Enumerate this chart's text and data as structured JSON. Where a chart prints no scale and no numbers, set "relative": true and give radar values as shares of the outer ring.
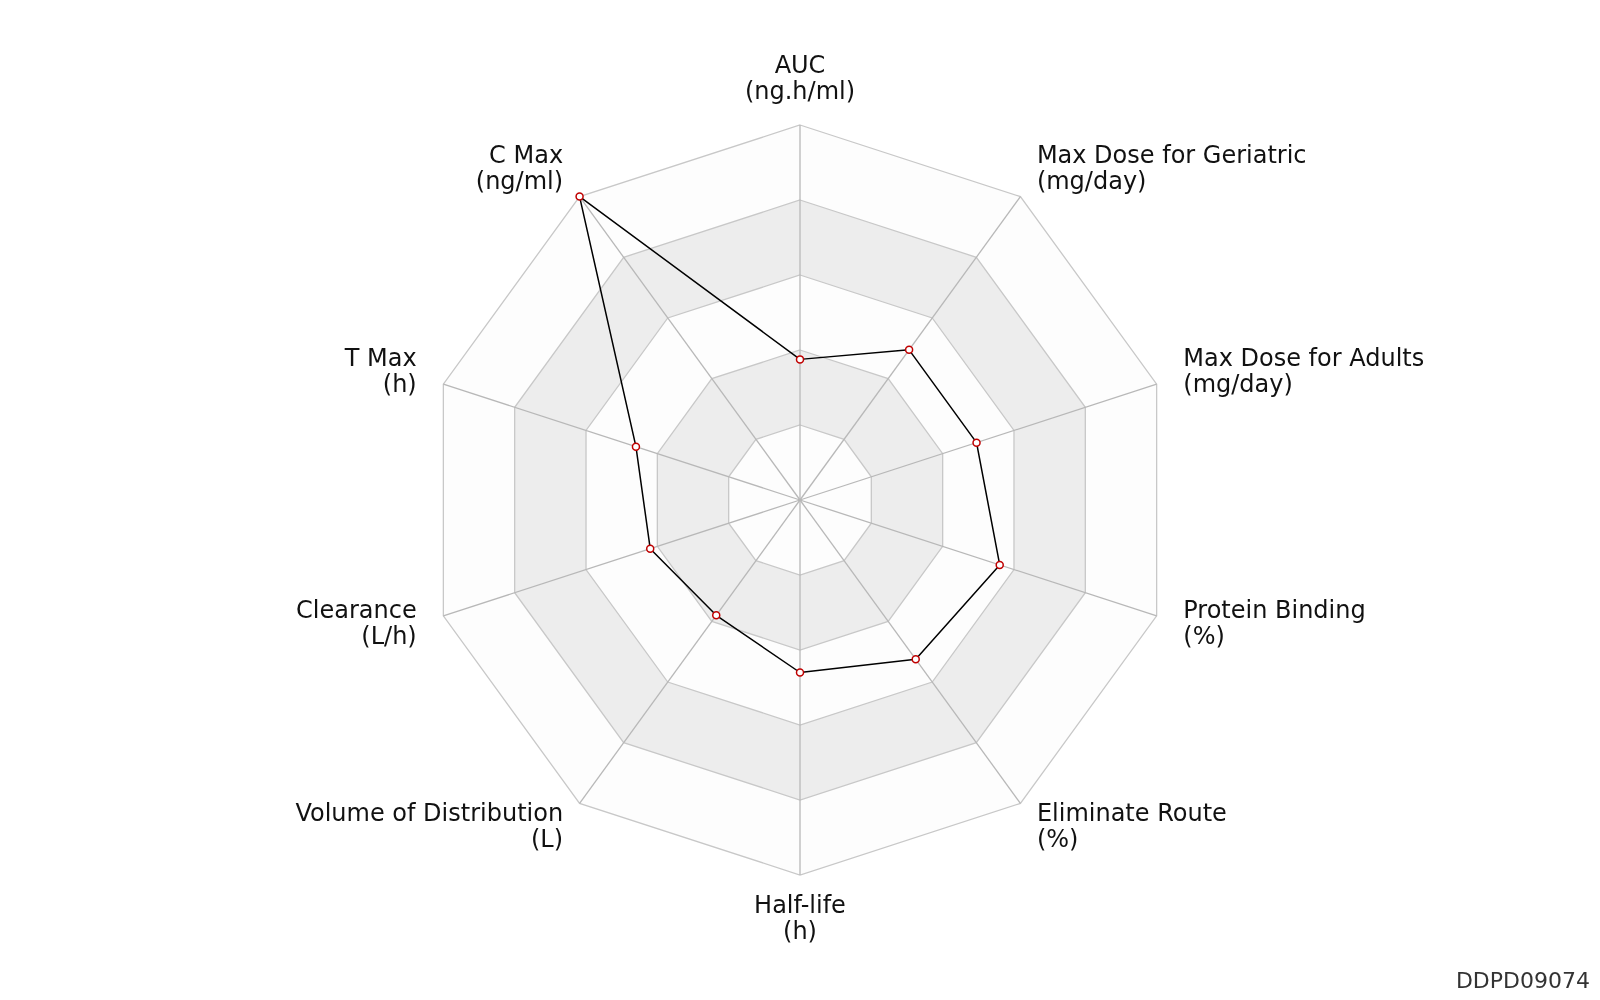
{
  "chart_data": {
    "type": "radar",
    "relative": true,
    "categories": [
      "AUC\n(ng.h/ml)",
      "Max Dose for Geriatric\n(mg/day)",
      "Max Dose for Adults\n(mg/day)",
      "Protein Binding\n(%)",
      "Eliminate Route\n(%)",
      "Half-life\n(h)",
      "Volume of Distribution\n(L)",
      "Clearance\n(L/h)",
      "T Max\n(h)",
      "C Max\n(ng/ml)"
    ],
    "series": [
      {
        "color": "#000000",
        "values": [
          0.375,
          0.495,
          0.495,
          0.56,
          0.525,
          0.46,
          0.38,
          0.42,
          0.46,
          1.0
        ]
      }
    ],
    "marker": "circle",
    "line_style": "solid",
    "grid": true,
    "annotations": [
      "DDPD09074"
    ]
  }
}
